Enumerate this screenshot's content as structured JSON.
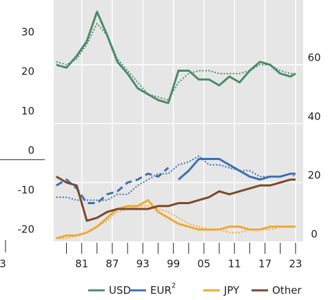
{
  "left_panel": {
    "yticks": [
      30,
      20,
      10,
      0,
      -10,
      -20
    ],
    "ylim": [
      -20,
      30
    ],
    "xtick_labels": [
      "3"
    ]
  },
  "chart_data": {
    "type": "line",
    "x": [
      1976,
      1978,
      1980,
      1982,
      1984,
      1986,
      1988,
      1990,
      1992,
      1994,
      1996,
      1998,
      2000,
      2002,
      2004,
      2006,
      2008,
      2010,
      2012,
      2014,
      2016,
      2018,
      2020,
      2022,
      2023
    ],
    "xlim": [
      1975.5,
      2024.5
    ],
    "xticks": [
      {
        "value": 1981,
        "label": "81"
      },
      {
        "value": 1987,
        "label": "87"
      },
      {
        "value": 1993,
        "label": "93"
      },
      {
        "value": 1999,
        "label": "99"
      },
      {
        "value": 2005,
        "label": "05"
      },
      {
        "value": 2011,
        "label": "11"
      },
      {
        "value": 2017,
        "label": "17"
      },
      {
        "value": 2023,
        "label": "23"
      }
    ],
    "xticks_minor": [
      1978,
      1984,
      1990,
      1996,
      2002,
      2008,
      2014,
      2020
    ],
    "y2lim": [
      0,
      82
    ],
    "y2ticks": [
      0,
      20,
      40,
      60
    ],
    "grid": true,
    "series": [
      {
        "name": "USD",
        "color": "#4a8a68",
        "axis": "y2",
        "values": [
          60,
          59,
          63,
          68,
          78,
          70,
          61,
          57,
          52,
          50,
          48,
          47,
          58,
          58,
          55,
          55,
          53,
          56,
          54,
          58,
          61,
          60,
          57,
          56,
          57
        ],
        "dotted_values": [
          61,
          60,
          62,
          67,
          74,
          70,
          62,
          58,
          54,
          50,
          49,
          48,
          54,
          57,
          58,
          58,
          57,
          57,
          57,
          58,
          60,
          60,
          58,
          57,
          57
        ]
      },
      {
        "name": "EUR",
        "name_sup": "2",
        "color": "#3b6fb4",
        "axis": "y2",
        "values": [
          null,
          null,
          null,
          null,
          null,
          null,
          null,
          null,
          null,
          null,
          null,
          null,
          21,
          24,
          28,
          28,
          28,
          26,
          24,
          22,
          21,
          22,
          22,
          23,
          23
        ],
        "dashed_values": [
          19,
          21,
          18,
          13,
          13,
          16,
          17,
          20,
          21,
          23,
          22,
          25,
          null,
          null,
          null,
          null,
          null,
          null,
          null,
          null,
          null,
          null,
          null,
          null,
          null
        ],
        "dotted_values": [
          15,
          15,
          14,
          14,
          14,
          14,
          16,
          16,
          19,
          21,
          23,
          23,
          26,
          27,
          29,
          26,
          26,
          25,
          24,
          24,
          22,
          22,
          22,
          23,
          22
        ]
      },
      {
        "name": "JPY",
        "color": "#f0a830",
        "axis": "y2",
        "values": [
          1,
          2,
          2,
          3,
          5,
          8,
          11,
          12,
          12,
          14,
          10,
          8,
          6,
          5,
          4,
          4,
          4,
          5,
          5,
          4,
          4,
          5,
          5,
          5,
          5
        ],
        "dotted_values": [
          1,
          1,
          2,
          3,
          5,
          7,
          10,
          11,
          12,
          12,
          11,
          10,
          8,
          6,
          5,
          4,
          4,
          3,
          3,
          4,
          4,
          4,
          5,
          5,
          5
        ]
      },
      {
        "name": "Other",
        "color": "#7a4828",
        "axis": "y2",
        "values": [
          22,
          20,
          19,
          7,
          8,
          10,
          11,
          11,
          11,
          11,
          12,
          12,
          13,
          13,
          14,
          15,
          17,
          16,
          17,
          18,
          19,
          19,
          20,
          21,
          21
        ]
      }
    ]
  }
}
